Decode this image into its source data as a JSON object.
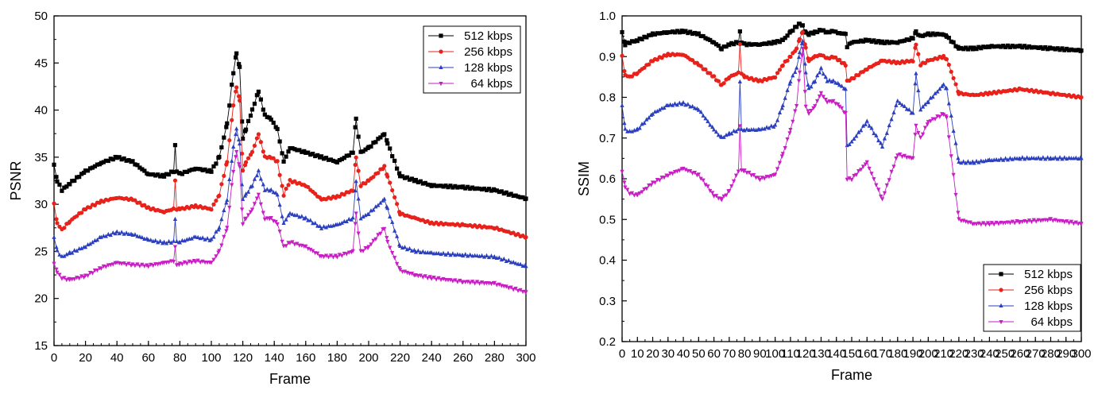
{
  "figure": {
    "description_free": true
  },
  "chart_data": [
    {
      "type": "line",
      "title": "",
      "xlabel": "Frame",
      "ylabel": "PSNR",
      "xlim": [
        0,
        300
      ],
      "ylim": [
        15,
        50
      ],
      "xticks": [
        "0",
        "20",
        "40",
        "60",
        "80",
        "100",
        "120",
        "140",
        "160",
        "180",
        "200",
        "220",
        "240",
        "260",
        "280",
        "300"
      ],
      "yticks": [
        "15",
        "20",
        "25",
        "30",
        "35",
        "40",
        "45",
        "50"
      ],
      "legend_position": "top-right",
      "x": [
        0,
        2,
        5,
        10,
        20,
        30,
        40,
        50,
        60,
        70,
        76,
        77,
        78,
        80,
        90,
        100,
        105,
        110,
        114,
        116,
        118,
        120,
        122,
        126,
        130,
        134,
        138,
        142,
        146,
        150,
        160,
        170,
        180,
        190,
        192,
        195,
        200,
        210,
        212,
        220,
        230,
        240,
        260,
        280,
        300
      ],
      "series": [
        {
          "name": "512 kbps",
          "color": "#000000",
          "marker": "square",
          "values": [
            34.2,
            32.5,
            31.5,
            32.2,
            33.5,
            34.4,
            35.0,
            34.5,
            33.2,
            33.0,
            33.5,
            36.2,
            33.5,
            33.2,
            33.8,
            33.5,
            35.0,
            38.5,
            44.0,
            46.0,
            44.5,
            37.0,
            38.0,
            40.0,
            42.0,
            39.5,
            39.0,
            38.0,
            34.5,
            36.0,
            35.5,
            35.0,
            34.5,
            35.5,
            39.0,
            35.5,
            36.0,
            37.5,
            36.5,
            33.0,
            32.5,
            32.0,
            31.8,
            31.5,
            30.6
          ]
        },
        {
          "name": "256 kbps",
          "color": "#e8221b",
          "marker": "circle",
          "values": [
            30.0,
            28.0,
            27.3,
            28.2,
            29.5,
            30.3,
            30.7,
            30.5,
            29.6,
            29.2,
            29.5,
            32.5,
            29.5,
            29.5,
            29.8,
            29.5,
            31.0,
            34.5,
            40.5,
            42.5,
            41.0,
            33.5,
            34.5,
            35.5,
            37.5,
            35.0,
            35.0,
            34.5,
            31.0,
            32.5,
            32.0,
            30.5,
            30.8,
            31.5,
            35.0,
            32.0,
            32.5,
            34.0,
            33.0,
            29.0,
            28.5,
            28.0,
            27.8,
            27.5,
            26.5
          ]
        },
        {
          "name": "128 kbps",
          "color": "#2b3fbf",
          "marker": "triangle-up",
          "values": [
            26.5,
            25.0,
            24.4,
            24.8,
            25.5,
            26.5,
            27.0,
            26.8,
            26.2,
            25.9,
            26.0,
            28.5,
            26.0,
            26.0,
            26.5,
            26.2,
            27.5,
            30.5,
            36.0,
            38.0,
            36.5,
            30.5,
            31.0,
            32.0,
            33.5,
            31.5,
            31.5,
            31.0,
            28.0,
            29.0,
            28.5,
            27.5,
            27.8,
            28.5,
            32.5,
            28.5,
            29.0,
            30.5,
            29.5,
            25.5,
            25.0,
            24.8,
            24.6,
            24.4,
            23.4
          ]
        },
        {
          "name": "64 kbps",
          "color": "#c81ec4",
          "marker": "triangle-down",
          "values": [
            23.8,
            22.8,
            22.2,
            22.0,
            22.4,
            23.3,
            23.8,
            23.6,
            23.5,
            23.8,
            24.0,
            25.5,
            23.5,
            23.7,
            24.0,
            23.8,
            25.0,
            27.5,
            33.5,
            35.5,
            34.0,
            28.0,
            28.5,
            29.5,
            31.0,
            28.5,
            28.5,
            28.0,
            25.5,
            26.0,
            25.5,
            24.5,
            24.5,
            25.0,
            29.0,
            25.0,
            25.5,
            27.5,
            26.0,
            23.0,
            22.5,
            22.2,
            21.8,
            21.6,
            20.7
          ]
        }
      ]
    },
    {
      "type": "line",
      "title": "",
      "xlabel": "Frame",
      "ylabel": "SSIM",
      "xlim": [
        0,
        300
      ],
      "ylim": [
        0.2,
        1.0
      ],
      "xticks": [
        "0",
        "10",
        "20",
        "30",
        "40",
        "50",
        "60",
        "70",
        "80",
        "90",
        "100",
        "110",
        "120",
        "130",
        "140",
        "150",
        "160",
        "170",
        "180",
        "190",
        "200",
        "210",
        "220",
        "230",
        "240",
        "250",
        "260",
        "270",
        "280",
        "290",
        "300"
      ],
      "yticks": [
        "0.2",
        "0.3",
        "0.4",
        "0.5",
        "0.6",
        "0.7",
        "0.8",
        "0.9",
        "1.0"
      ],
      "legend_position": "bottom-right",
      "x": [
        0,
        2,
        5,
        10,
        20,
        30,
        40,
        50,
        60,
        65,
        70,
        76,
        77,
        78,
        80,
        90,
        100,
        105,
        110,
        114,
        116,
        118,
        120,
        122,
        126,
        130,
        134,
        138,
        142,
        146,
        147,
        150,
        160,
        170,
        180,
        190,
        192,
        195,
        200,
        210,
        212,
        220,
        230,
        240,
        260,
        280,
        300
      ],
      "series": [
        {
          "name": "512 kbps",
          "color": "#000000",
          "marker": "square",
          "values": [
            0.96,
            0.93,
            0.935,
            0.94,
            0.955,
            0.96,
            0.962,
            0.955,
            0.935,
            0.92,
            0.93,
            0.935,
            0.96,
            0.935,
            0.93,
            0.93,
            0.935,
            0.94,
            0.96,
            0.975,
            0.98,
            0.975,
            0.96,
            0.955,
            0.96,
            0.965,
            0.96,
            0.962,
            0.958,
            0.955,
            0.925,
            0.935,
            0.94,
            0.935,
            0.935,
            0.945,
            0.96,
            0.95,
            0.955,
            0.955,
            0.95,
            0.92,
            0.92,
            0.925,
            0.925,
            0.92,
            0.915
          ]
        },
        {
          "name": "256 kbps",
          "color": "#e8221b",
          "marker": "circle",
          "values": [
            0.9,
            0.855,
            0.85,
            0.86,
            0.89,
            0.905,
            0.905,
            0.88,
            0.85,
            0.83,
            0.85,
            0.86,
            0.93,
            0.86,
            0.85,
            0.84,
            0.85,
            0.88,
            0.9,
            0.92,
            0.945,
            0.96,
            0.92,
            0.89,
            0.9,
            0.905,
            0.895,
            0.9,
            0.89,
            0.88,
            0.84,
            0.845,
            0.87,
            0.89,
            0.885,
            0.89,
            0.93,
            0.88,
            0.89,
            0.9,
            0.895,
            0.81,
            0.805,
            0.81,
            0.82,
            0.81,
            0.8
          ]
        },
        {
          "name": "128 kbps",
          "color": "#2b3fbf",
          "marker": "triangle-up",
          "values": [
            0.78,
            0.72,
            0.715,
            0.72,
            0.76,
            0.78,
            0.785,
            0.77,
            0.72,
            0.7,
            0.71,
            0.72,
            0.84,
            0.72,
            0.72,
            0.72,
            0.73,
            0.78,
            0.84,
            0.87,
            0.91,
            0.94,
            0.86,
            0.82,
            0.84,
            0.87,
            0.84,
            0.84,
            0.83,
            0.82,
            0.68,
            0.69,
            0.74,
            0.68,
            0.79,
            0.76,
            0.86,
            0.77,
            0.79,
            0.83,
            0.82,
            0.64,
            0.64,
            0.645,
            0.65,
            0.65,
            0.65
          ]
        },
        {
          "name": "64 kbps",
          "color": "#c81ec4",
          "marker": "triangle-down",
          "values": [
            0.62,
            0.58,
            0.565,
            0.56,
            0.59,
            0.61,
            0.625,
            0.61,
            0.56,
            0.55,
            0.57,
            0.62,
            0.73,
            0.62,
            0.62,
            0.6,
            0.61,
            0.66,
            0.72,
            0.78,
            0.86,
            0.92,
            0.78,
            0.76,
            0.78,
            0.81,
            0.79,
            0.79,
            0.78,
            0.76,
            0.6,
            0.6,
            0.64,
            0.55,
            0.66,
            0.65,
            0.73,
            0.7,
            0.74,
            0.76,
            0.75,
            0.5,
            0.49,
            0.49,
            0.495,
            0.5,
            0.49
          ]
        }
      ]
    }
  ]
}
